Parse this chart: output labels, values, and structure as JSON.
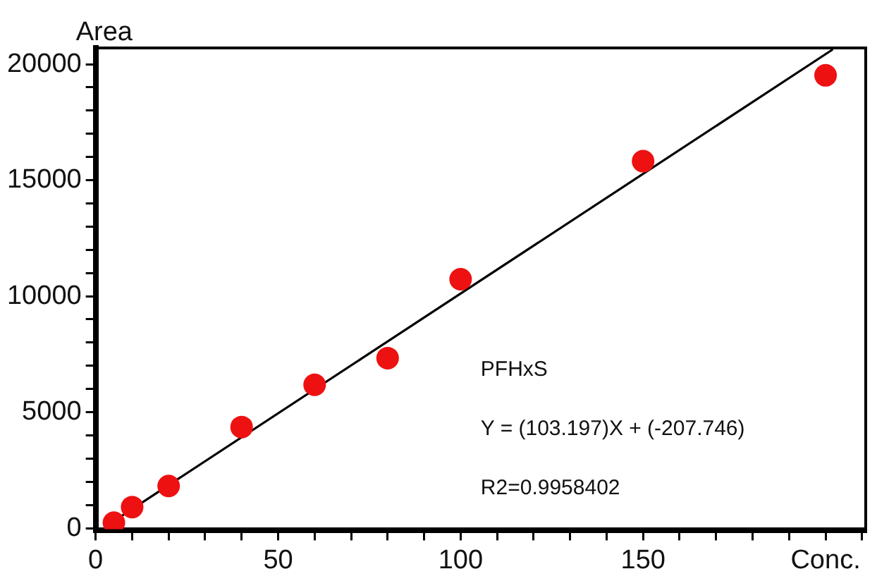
{
  "chart_data": {
    "type": "scatter",
    "ylabel": "Area",
    "xlim": [
      0,
      211
    ],
    "ylim": [
      -100,
      20700
    ],
    "xticks": [
      0,
      {
        "value": 10,
        "label": null
      },
      {
        "value": 20,
        "label": null
      },
      {
        "value": 30,
        "label": null
      },
      {
        "value": 40,
        "label": null
      },
      50,
      {
        "value": 60,
        "label": null
      },
      {
        "value": 70,
        "label": null
      },
      {
        "value": 80,
        "label": null
      },
      {
        "value": 90,
        "label": null
      },
      100,
      {
        "value": 110,
        "label": null
      },
      {
        "value": 120,
        "label": null
      },
      {
        "value": 130,
        "label": null
      },
      {
        "value": 140,
        "label": null
      },
      150,
      {
        "value": 160,
        "label": null
      },
      {
        "value": 170,
        "label": null
      },
      {
        "value": 180,
        "label": null
      },
      {
        "value": 190,
        "label": null
      },
      {
        "value": 200,
        "label": "Conc."
      },
      {
        "value": 210,
        "label": null
      }
    ],
    "yticks": [
      0,
      {
        "value": 1000,
        "label": null
      },
      {
        "value": 2000,
        "label": null
      },
      {
        "value": 3000,
        "label": null
      },
      {
        "value": 4000,
        "label": null
      },
      5000,
      {
        "value": 6000,
        "label": null
      },
      {
        "value": 7000,
        "label": null
      },
      {
        "value": 8000,
        "label": null
      },
      {
        "value": 9000,
        "label": null
      },
      10000,
      {
        "value": 11000,
        "label": null
      },
      {
        "value": 12000,
        "label": null
      },
      {
        "value": 13000,
        "label": null
      },
      {
        "value": 14000,
        "label": null
      },
      15000,
      {
        "value": 16000,
        "label": null
      },
      {
        "value": 17000,
        "label": null
      },
      {
        "value": 18000,
        "label": null
      },
      {
        "value": 19000,
        "label": null
      },
      20000
    ],
    "grid": false,
    "legend": false,
    "marker": "circle",
    "series": [
      {
        "color": "#ee1111",
        "x": [
          5,
          10,
          20,
          40,
          60,
          80,
          100,
          150,
          200
        ],
        "values": [
          240,
          910,
          1820,
          4360,
          6180,
          7330,
          10730,
          15820,
          19520
        ]
      },
      {
        "type": "line",
        "color": "#000000",
        "marker": "none",
        "x": [
          2.5,
          202
        ],
        "values": [
          50,
          20640
        ]
      }
    ],
    "annotations": [
      "PFHxS",
      "Y = (103.197)X + (-207.746)",
      "R2=0.9958402"
    ]
  }
}
